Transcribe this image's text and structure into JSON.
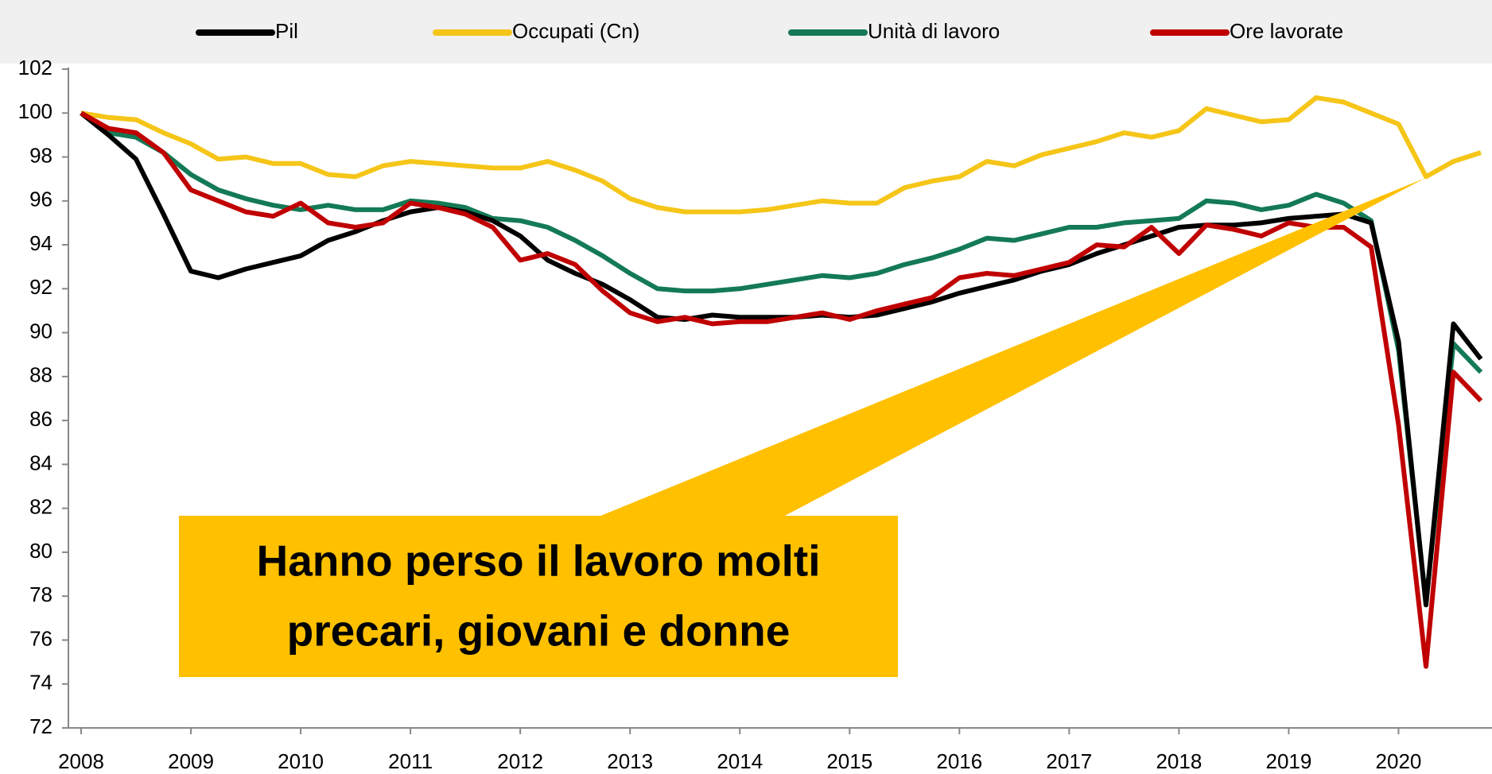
{
  "chart_data": {
    "type": "line",
    "categories": [
      "2008",
      null,
      null,
      null,
      "2009",
      null,
      null,
      null,
      "2010",
      null,
      null,
      null,
      "2011",
      null,
      null,
      null,
      "2012",
      null,
      null,
      null,
      "2013",
      null,
      null,
      null,
      "2014",
      null,
      null,
      null,
      "2015",
      null,
      null,
      null,
      "2016",
      null,
      null,
      null,
      "2017",
      null,
      null,
      null,
      "2018",
      null,
      null,
      null,
      "2019",
      null,
      null,
      null,
      "2020",
      null,
      null,
      null
    ],
    "series": [
      {
        "name": "Pil",
        "color": "#000000",
        "values": [
          100,
          99.0,
          97.9,
          95.4,
          92.8,
          92.5,
          92.9,
          93.2,
          93.5,
          94.2,
          94.6,
          95.1,
          95.5,
          95.7,
          95.5,
          95.1,
          94.4,
          93.3,
          92.7,
          92.2,
          91.5,
          90.7,
          90.6,
          90.8,
          90.7,
          90.7,
          90.7,
          90.8,
          90.7,
          90.8,
          91.1,
          91.4,
          91.8,
          92.1,
          92.4,
          92.8,
          93.1,
          93.6,
          94.0,
          94.4,
          94.8,
          94.9,
          94.9,
          95.0,
          95.2,
          95.3,
          95.4,
          95.0,
          89.6,
          77.6,
          90.4,
          88.8
        ]
      },
      {
        "name": "Occupati (Cn)",
        "color": "#f5c518",
        "values": [
          100,
          99.8,
          99.7,
          99.1,
          98.6,
          97.9,
          98.0,
          97.7,
          97.7,
          97.2,
          97.1,
          97.6,
          97.8,
          97.7,
          97.6,
          97.5,
          97.5,
          97.8,
          97.4,
          96.9,
          96.1,
          95.7,
          95.5,
          95.5,
          95.5,
          95.6,
          95.8,
          96.0,
          95.9,
          95.9,
          96.6,
          96.9,
          97.1,
          97.8,
          97.6,
          98.1,
          98.4,
          98.7,
          99.1,
          98.9,
          99.2,
          100.2,
          99.9,
          99.6,
          99.7,
          100.7,
          100.5,
          100.0,
          99.5,
          97.1,
          97.8,
          98.2
        ]
      },
      {
        "name": "Unità di lavoro",
        "color": "#137a55",
        "values": [
          100,
          99.1,
          98.9,
          98.2,
          97.2,
          96.5,
          96.1,
          95.8,
          95.6,
          95.8,
          95.6,
          95.6,
          96.0,
          95.9,
          95.7,
          95.2,
          95.1,
          94.8,
          94.2,
          93.5,
          92.7,
          92.0,
          91.9,
          91.9,
          92.0,
          92.2,
          92.4,
          92.6,
          92.5,
          92.7,
          93.1,
          93.4,
          93.8,
          94.3,
          94.2,
          94.5,
          94.8,
          94.8,
          95.0,
          95.1,
          95.2,
          96.0,
          95.9,
          95.6,
          95.8,
          96.3,
          95.9,
          95.1,
          89.2,
          77.7,
          89.5,
          88.2
        ]
      },
      {
        "name": "Ore lavorate",
        "color": "#c00000",
        "values": [
          100,
          99.3,
          99.1,
          98.2,
          96.5,
          96.0,
          95.5,
          95.3,
          95.9,
          95.0,
          94.8,
          95.0,
          95.9,
          95.7,
          95.4,
          94.8,
          93.3,
          93.6,
          93.1,
          91.9,
          90.9,
          90.5,
          90.7,
          90.4,
          90.5,
          90.5,
          90.7,
          90.9,
          90.6,
          91.0,
          91.3,
          91.6,
          92.5,
          92.7,
          92.6,
          92.9,
          93.2,
          94.0,
          93.9,
          94.8,
          93.6,
          94.9,
          94.7,
          94.4,
          95.0,
          94.8,
          94.8,
          93.9,
          85.8,
          74.8,
          88.2,
          86.9
        ]
      }
    ],
    "ylim": [
      72,
      102
    ],
    "yticks": [
      72,
      74,
      76,
      78,
      80,
      82,
      84,
      86,
      88,
      90,
      92,
      94,
      96,
      98,
      100,
      102
    ],
    "legend": "top",
    "annotation": [
      "Hanno perso il lavoro molti",
      "precari, giovani e donne"
    ]
  }
}
